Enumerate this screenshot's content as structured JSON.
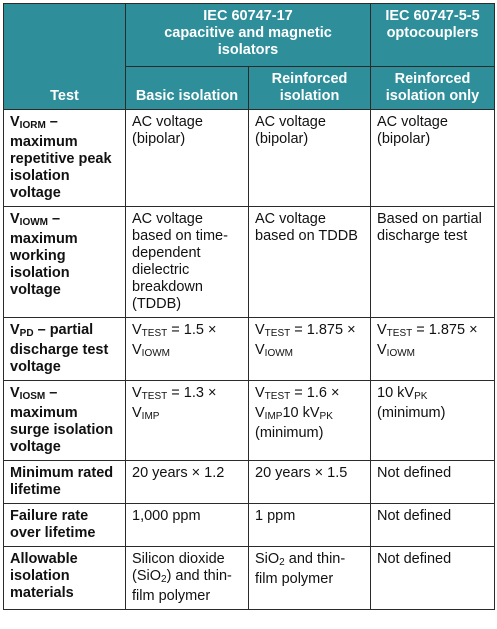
{
  "header": {
    "test": "Test",
    "group1_line1": "IEC 60747-17",
    "group1_line2": "capacitive and magnetic",
    "group1_line3": "isolators",
    "group2_line1": "IEC 60747-5-5",
    "group2_line2": "optocouplers",
    "basic": "Basic isolation",
    "reinforced_line1": "Reinforced",
    "reinforced_line2": "isolation",
    "reinforced_only_line1": "Reinforced",
    "reinforced_only_line2": "isolation only"
  },
  "rows": [
    {
      "test_prefix": "V",
      "test_sub": "IORM",
      "test_rest": " – maximum repetitive peak isolation voltage",
      "basic": "AC voltage (bipolar)",
      "reinforced": "AC voltage (bipolar)",
      "opto": "AC voltage (bipolar)"
    },
    {
      "test_prefix": "V",
      "test_sub": "IOWM",
      "test_rest": " – maximum working isolation voltage",
      "basic": "AC voltage based on time-dependent dielectric breakdown (TDDB)",
      "reinforced": "AC voltage based on TDDB",
      "opto": "Based on partial discharge test"
    },
    {
      "test_prefix": "V",
      "test_sub": "PD",
      "test_rest": " – partial discharge test voltage",
      "basic_a": "V",
      "basic_a_sub": "TEST",
      "basic_b": " = 1.5 × V",
      "basic_b_sub": "IOWM",
      "reinforced_a": "V",
      "reinforced_a_sub": "TEST",
      "reinforced_b": " = 1.875 × V",
      "reinforced_b_sub": "IOWM",
      "opto_a": "V",
      "opto_a_sub": "TEST",
      "opto_b": " = 1.875 × V",
      "opto_b_sub": "IOWM"
    },
    {
      "test_prefix": "V",
      "test_sub": "IOSM",
      "test_rest": " – maximum surge isolation voltage",
      "basic_a": "V",
      "basic_a_sub": "TEST",
      "basic_b": " = 1.3 × V",
      "basic_b_sub": "IMP",
      "reinforced_a": "V",
      "reinforced_a_sub": "TEST",
      "reinforced_b": " = 1.6 × V",
      "reinforced_b_sub": "IMP",
      "reinforced_c": "10 kV",
      "reinforced_c_sub": "PK",
      "reinforced_d": "(minimum)",
      "opto_a": "10 kV",
      "opto_a_sub": "PK",
      "opto_b": "(minimum)"
    },
    {
      "test": "Minimum rated lifetime",
      "basic": "20 years × 1.2",
      "reinforced": "20 years × 1.5",
      "opto": "Not defined"
    },
    {
      "test": "Failure rate over lifetime",
      "basic": "1,000 ppm",
      "reinforced": "1 ppm",
      "opto": "Not defined"
    },
    {
      "test": "Allowable isolation materials",
      "basic_a": "Silicon dioxide (SiO",
      "basic_sub": "2",
      "basic_b": ") and thin-film polymer",
      "reinforced_a": "SiO",
      "reinforced_sub": "2",
      "reinforced_b": " and thin-film polymer",
      "opto": "Not defined"
    }
  ],
  "colors": {
    "header_bg": "#2e8f9b",
    "header_text": "#ffffff",
    "border": "#2b2b2b"
  }
}
